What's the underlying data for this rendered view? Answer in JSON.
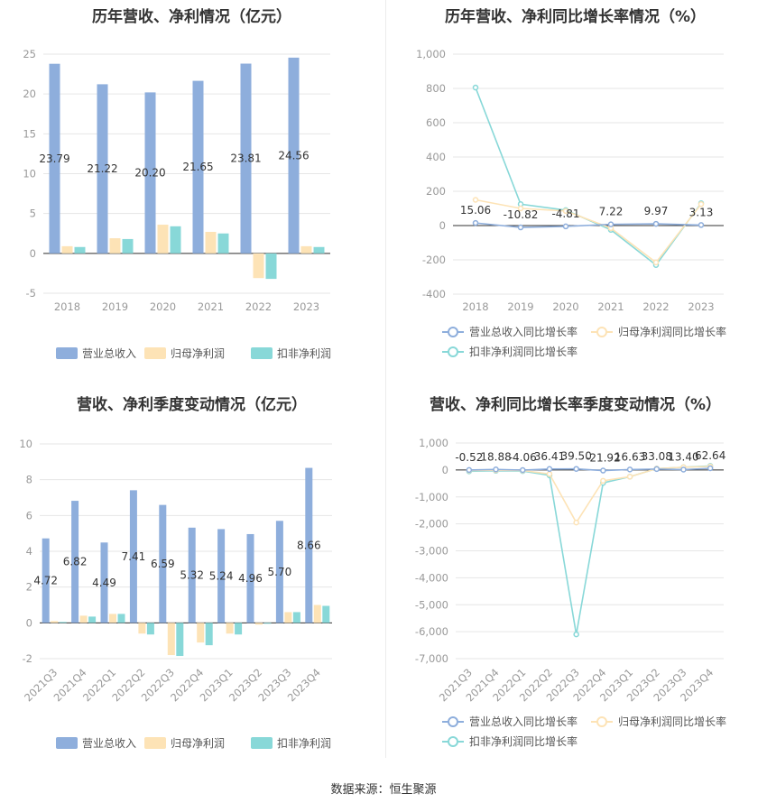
{
  "source_label": "数据来源：恒生聚源",
  "colors": {
    "revenue": "#8eaedc",
    "net_profit": "#fde3b6",
    "deducted": "#88d8d8",
    "grid": "#e6e6e6",
    "axis": "#999999"
  },
  "chart_data": [
    {
      "type": "bar",
      "title": "历年营收、净利情况（亿元）",
      "categories": [
        "2018",
        "2019",
        "2020",
        "2021",
        "2022",
        "2023"
      ],
      "series": [
        {
          "name": "营业总收入",
          "values": [
            23.79,
            21.22,
            20.2,
            21.65,
            23.81,
            24.56
          ],
          "labels": [
            "23.79",
            "21.22",
            "20.20",
            "21.65",
            "23.81",
            "24.56"
          ]
        },
        {
          "name": "归母净利润",
          "values": [
            0.9,
            1.9,
            3.6,
            2.7,
            -3.1,
            0.9
          ]
        },
        {
          "name": "扣非净利润",
          "values": [
            0.8,
            1.8,
            3.4,
            2.5,
            -3.2,
            0.8
          ]
        }
      ],
      "ylim": [
        -5,
        25
      ],
      "yticks": [
        -5,
        0,
        5,
        10,
        15,
        20,
        25
      ],
      "ytick_labels": [
        "-5",
        "0",
        "5",
        "10",
        "15",
        "20",
        "25"
      ],
      "grid": true,
      "legend": "bottom"
    },
    {
      "type": "line",
      "title": "历年营收、净利同比增长率情况（%）",
      "categories": [
        "2018",
        "2019",
        "2020",
        "2021",
        "2022",
        "2023"
      ],
      "series": [
        {
          "name": "营业总收入同比增长率",
          "values": [
            15.06,
            -10.82,
            -4.81,
            7.22,
            9.97,
            3.13
          ],
          "labels": [
            "15.06",
            "-10.82",
            "-4.81",
            "7.22",
            "9.97",
            "3.13"
          ]
        },
        {
          "name": "归母净利润同比增长率",
          "values": [
            150,
            100,
            85,
            -15,
            -215,
            125
          ]
        },
        {
          "name": "扣非净利润同比增长率",
          "values": [
            805,
            125,
            90,
            -25,
            -230,
            130
          ]
        }
      ],
      "ylim": [
        -400,
        1000
      ],
      "yticks": [
        -400,
        -200,
        0,
        200,
        400,
        600,
        800,
        1000
      ],
      "ytick_labels": [
        "-400",
        "-200",
        "0",
        "200",
        "400",
        "600",
        "800",
        "1,000"
      ],
      "grid": true,
      "legend": "bottom"
    },
    {
      "type": "bar",
      "title": "营收、净利季度变动情况（亿元）",
      "categories": [
        "2021Q3",
        "2021Q4",
        "2022Q1",
        "2022Q2",
        "2022Q3",
        "2022Q4",
        "2023Q1",
        "2023Q2",
        "2023Q3",
        "2023Q4"
      ],
      "series": [
        {
          "name": "营业总收入",
          "values": [
            4.72,
            6.82,
            4.49,
            7.41,
            6.59,
            5.32,
            5.24,
            4.96,
            5.7,
            8.66
          ],
          "labels": [
            "4.72",
            "6.82",
            "4.49",
            "7.41",
            "6.59",
            "5.32",
            "5.24",
            "4.96",
            "5.70",
            "8.66"
          ]
        },
        {
          "name": "归母净利润",
          "values": [
            0.1,
            0.4,
            0.5,
            -0.6,
            -1.8,
            -1.1,
            -0.6,
            -0.1,
            0.6,
            1.0
          ]
        },
        {
          "name": "扣非净利润",
          "values": [
            0.05,
            0.35,
            0.5,
            -0.65,
            -1.85,
            -1.25,
            -0.65,
            -0.05,
            0.6,
            0.95
          ]
        }
      ],
      "ylim": [
        -2,
        10
      ],
      "yticks": [
        -2,
        0,
        2,
        4,
        6,
        8,
        10
      ],
      "ytick_labels": [
        "-2",
        "0",
        "2",
        "4",
        "6",
        "8",
        "10"
      ],
      "grid": true,
      "legend": "bottom"
    },
    {
      "type": "line",
      "title": "营收、净利同比增长率季度变动情况（%）",
      "categories": [
        "2021Q3",
        "2021Q4",
        "2022Q1",
        "2022Q2",
        "2022Q3",
        "2022Q4",
        "2023Q1",
        "2023Q2",
        "2023Q3",
        "2023Q4"
      ],
      "series": [
        {
          "name": "营业总收入同比增长率",
          "values": [
            -0.52,
            18.88,
            -4.06,
            36.41,
            39.5,
            -21.92,
            16.63,
            33.08,
            13.4,
            62.64
          ],
          "labels": [
            "-0.52",
            "18.88",
            "-4.06",
            "36.41",
            "39.50",
            "-21.92",
            "16.63",
            "33.08",
            "13.40",
            "62.64"
          ]
        },
        {
          "name": "归母净利润同比增长率",
          "values": [
            -20,
            -10,
            -20,
            -150,
            -1950,
            -400,
            -250,
            50,
            100,
            130
          ]
        },
        {
          "name": "扣非净利润同比增长率",
          "values": [
            -50,
            -30,
            -40,
            -200,
            -6100,
            -480,
            -250,
            50,
            100,
            150
          ]
        }
      ],
      "ylim": [
        -7000,
        1000
      ],
      "yticks": [
        -7000,
        -6000,
        -5000,
        -4000,
        -3000,
        -2000,
        -1000,
        0,
        1000
      ],
      "ytick_labels": [
        "-7,000",
        "-6,000",
        "-5,000",
        "-4,000",
        "-3,000",
        "-2,000",
        "-1,000",
        "0",
        "1,000"
      ],
      "grid": true,
      "legend": "bottom"
    }
  ]
}
